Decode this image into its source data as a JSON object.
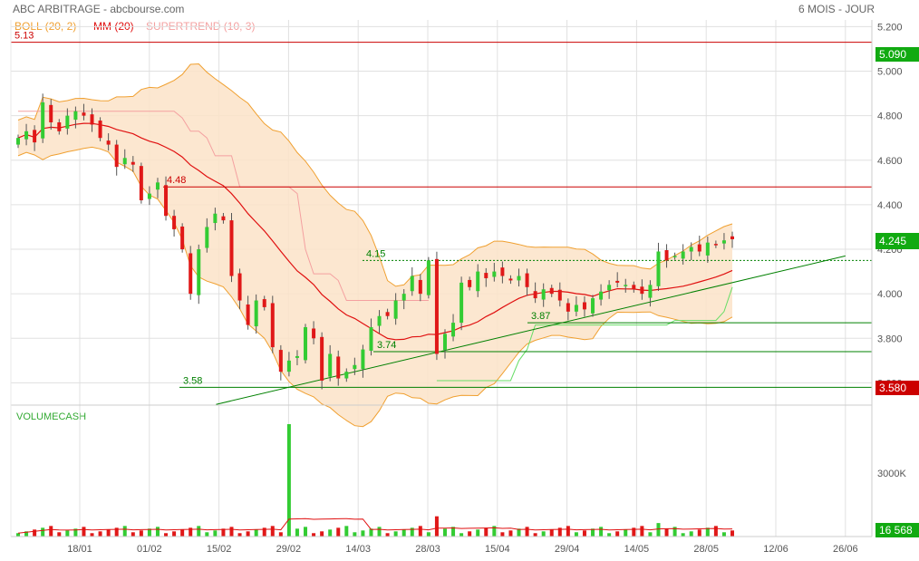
{
  "header": {
    "title": "ABC ARBITRAGE - abcbourse.com",
    "period": "6 MOIS - JOUR"
  },
  "legend": [
    {
      "label": "BOLL (20, 2)",
      "color": "#f0a030"
    },
    {
      "label": "MM (20)",
      "color": "#e01010"
    },
    {
      "label": "SUPERTREND (10, 3)",
      "color": "#f4a0a0"
    }
  ],
  "volume_panel": {
    "label": "VOLUMECASH",
    "axis_label": "3000K",
    "last_value_badge": "16 568"
  },
  "price_badges": {
    "top": "5.090",
    "last": "4.245",
    "bottom": "3.580"
  },
  "annotations": [
    {
      "text": "5.13",
      "value": 5.13,
      "color": "#cc0000"
    },
    {
      "text": "4.48",
      "value": 4.48,
      "color": "#cc0000"
    },
    {
      "text": "4.15",
      "value": 4.15,
      "color": "#008000"
    },
    {
      "text": "3.87",
      "value": 3.87,
      "color": "#008000"
    },
    {
      "text": "3.74",
      "value": 3.74,
      "color": "#008000"
    },
    {
      "text": "3.58",
      "value": 3.58,
      "color": "#008000"
    }
  ],
  "colors": {
    "up": "#33cc33",
    "down": "#e01818",
    "boll_fill": "#fbe3c8",
    "boll_line": "#f0a030",
    "mm": "#e01010",
    "supertrend_red": "#f4a0a0",
    "supertrend_green": "#66dd66",
    "trend": "#008000",
    "resistance": "#cc0000",
    "badge_red": "#cc0000",
    "badge_green": "#11aa11",
    "grid": "#e0e0e0",
    "axis_text": "#555555"
  },
  "chart_data": {
    "type": "candlestick",
    "title": "ABC ARBITRAGE - abcbourse.com",
    "period": "6 MOIS - JOUR",
    "x_ticks": [
      "18/01",
      "01/02",
      "15/02",
      "29/02",
      "14/03",
      "28/03",
      "15/04",
      "29/04",
      "14/05",
      "28/05",
      "12/06",
      "26/06"
    ],
    "y_ticks": [
      "3.600",
      "3.800",
      "4.000",
      "4.200",
      "4.400",
      "4.600",
      "4.800",
      "5.000",
      "5.200"
    ],
    "ylim": [
      3.5,
      5.23
    ],
    "closes": [
      4.7,
      4.73,
      4.68,
      4.86,
      4.77,
      4.73,
      4.8,
      4.82,
      4.8,
      4.76,
      4.7,
      4.67,
      4.57,
      4.61,
      4.58,
      4.42,
      4.45,
      4.5,
      4.35,
      4.29,
      4.2,
      4.0,
      4.2,
      4.3,
      4.36,
      4.33,
      4.08,
      3.97,
      3.86,
      3.97,
      3.94,
      3.76,
      3.65,
      3.7,
      3.72,
      3.85,
      3.8,
      3.61,
      3.73,
      3.62,
      3.65,
      3.68,
      3.75,
      3.85,
      3.9,
      3.9,
      3.97,
      4.0,
      4.08,
      4.0,
      4.15,
      3.73,
      3.82,
      3.87,
      4.05,
      4.03,
      4.1,
      4.07,
      4.1,
      4.08,
      4.06,
      4.08,
      4.03,
      3.98,
      4.02,
      4.0,
      3.97,
      3.92,
      3.95,
      3.93,
      3.98,
      4.01,
      4.04,
      4.05,
      4.04,
      4.02,
      4.0,
      4.04,
      4.19,
      4.15,
      4.17,
      4.19,
      4.21,
      4.19,
      4.23,
      4.22,
      4.24,
      4.245
    ],
    "volume_highlights": [
      {
        "x": "29/02",
        "note": "volume spike"
      }
    ],
    "volume_axis": "3000K",
    "indicators": [
      "BOLL (20, 2)",
      "MM (20)",
      "SUPERTREND (10, 3)"
    ],
    "levels": [
      5.13,
      4.48,
      4.15,
      3.87,
      3.74,
      3.58
    ],
    "trendline": {
      "from": {
        "x": "29/02",
        "y": 3.58
      },
      "to": {
        "x": "26/06",
        "y": 4.17
      }
    },
    "last_price": 4.245,
    "last_volume": "16 568"
  }
}
